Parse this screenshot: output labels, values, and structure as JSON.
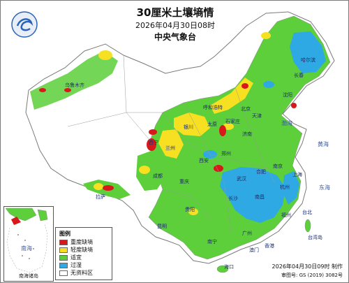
{
  "header": {
    "title": "30厘米土壤墒情",
    "time": "2026年04月30日08时",
    "org": "中央气象台"
  },
  "legend": {
    "title": "图例",
    "items": [
      {
        "label": "重度缺墒",
        "color": "#d7191c"
      },
      {
        "label": "轻度缺墒",
        "color": "#f7e021"
      },
      {
        "label": "适宜",
        "color": "#5ccf3a"
      },
      {
        "label": "过湿",
        "color": "#2fa9e3"
      },
      {
        "label": "无资料区",
        "color": "#ffffff"
      }
    ]
  },
  "inset": {
    "label": "南海诸岛",
    "sea": "南海"
  },
  "footer": {
    "made": "2026年04月30日09时 制作",
    "approval": "审图号: GS (2019) 3082号"
  },
  "places": [
    "北京",
    "天津",
    "石家庄",
    "太原",
    "济南",
    "郑州",
    "西安",
    "武汉",
    "合肥",
    "南京",
    "上海",
    "杭州",
    "长沙",
    "南昌",
    "福州",
    "广州",
    "南宁",
    "海口",
    "香港",
    "澳门",
    "台北",
    "台湾岛",
    "沈阳",
    "长春",
    "哈尔滨",
    "呼和浩特",
    "银川",
    "兰州",
    "西宁",
    "成都",
    "重庆",
    "贵阳",
    "昆明",
    "拉萨",
    "乌鲁木齐"
  ],
  "seas": {
    "yellow": "黄海",
    "east": "东海",
    "south": "南海",
    "bohai": "渤海"
  },
  "colors": {
    "severe": "#d7191c",
    "mild": "#f7e021",
    "suitable": "#5ccf3a",
    "wet": "#2fa9e3",
    "nodata": "#ffffff",
    "boundary": "#8a8a8a"
  }
}
